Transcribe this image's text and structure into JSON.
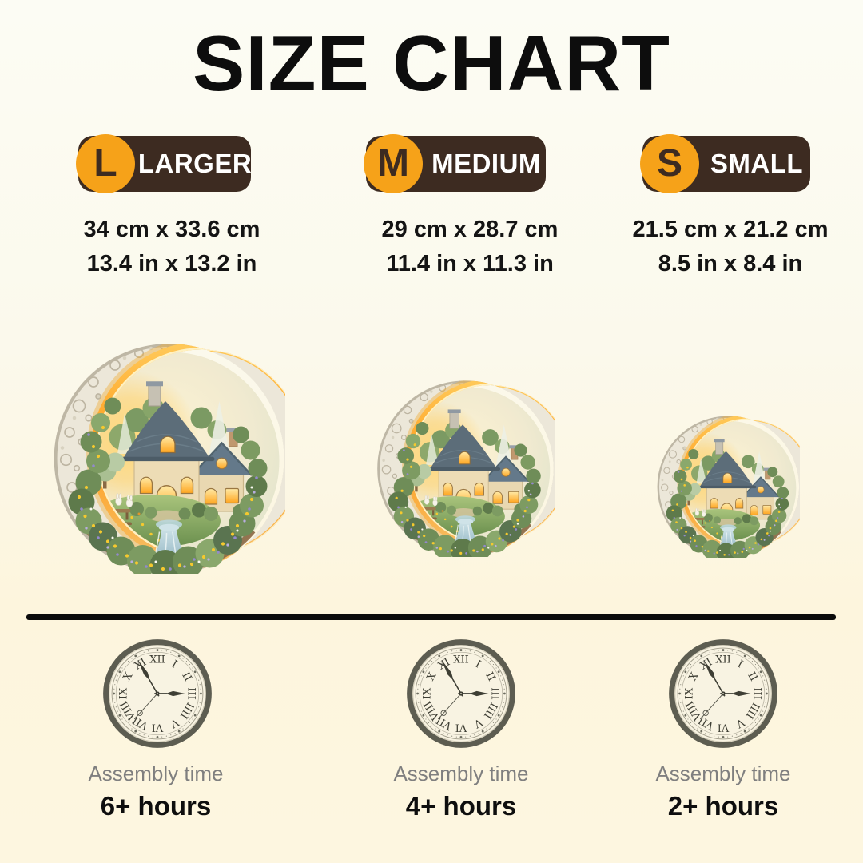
{
  "page": {
    "title": "SIZE CHART"
  },
  "sizes": [
    {
      "id": "larger",
      "letter": "L",
      "label": "LARGER",
      "dimensions_cm": "34 cm x 33.6 cm",
      "dimensions_in": "13.4 in x 13.2 in",
      "assembly_label": "Assembly time",
      "assembly_time": "6+ hours"
    },
    {
      "id": "medium",
      "letter": "M",
      "label": "MEDIUM",
      "dimensions_cm": "29 cm x 28.7 cm",
      "dimensions_in": "11.4 in x 11.3 in",
      "assembly_label": "Assembly time",
      "assembly_time": "4+ hours"
    },
    {
      "id": "small",
      "letter": "S",
      "label": "SMALL",
      "dimensions_cm": "21.5 cm x 21.2 cm",
      "dimensions_in": "8.5 in x 8.4 in",
      "assembly_label": "Assembly time",
      "assembly_time": "2+ hours"
    }
  ],
  "clock": {
    "numerals": [
      "XII",
      "I",
      "II",
      "III",
      "IIII",
      "V",
      "VI",
      "VII",
      "VIII",
      "IX",
      "X",
      "XI"
    ],
    "hands": {
      "hour_angle": 90,
      "minute_angle": 330,
      "second_angle": 222
    }
  },
  "artwork": {
    "description": "Crescent moon cottage garden puzzle scene"
  },
  "colors": {
    "badge_orange": "#F6A219",
    "badge_brown": "#3D2B21",
    "page_top": "#FCFCF4",
    "page_bottom": "#FDF6E0",
    "divider": "#0B0B0B",
    "text_gray": "#7F7F7F",
    "clock_rim": "#5D5D51",
    "clock_face": "#F8F3E2"
  }
}
